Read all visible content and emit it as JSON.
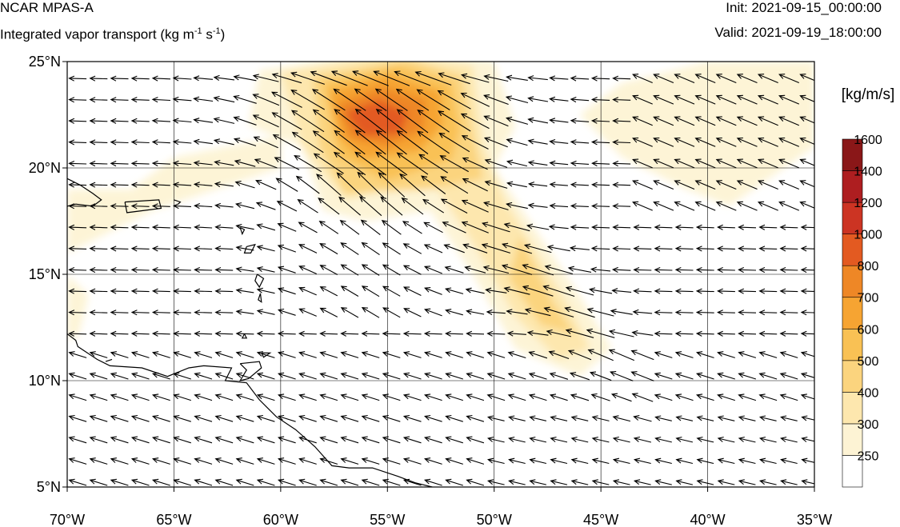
{
  "header": {
    "model_name": "NCAR MPAS-A",
    "field_name": "Integrated vapor transport (kg m",
    "field_unit_exp1": "-1",
    "field_mid": " s",
    "field_unit_exp2": "-1",
    "field_close": ")",
    "init_label": "Init: 2021-09-15_00:00:00",
    "valid_label": "Valid: 2021-09-19_18:00:00"
  },
  "map": {
    "lon_range": [
      -70,
      -35
    ],
    "lat_range": [
      5,
      25
    ],
    "lon_ticks": [
      {
        "value": -70,
        "label": "70°W"
      },
      {
        "value": -65,
        "label": "65°W"
      },
      {
        "value": -60,
        "label": "60°W"
      },
      {
        "value": -55,
        "label": "55°W"
      },
      {
        "value": -50,
        "label": "50°W"
      },
      {
        "value": -45,
        "label": "45°W"
      },
      {
        "value": -40,
        "label": "40°W"
      },
      {
        "value": -35,
        "label": "35°W"
      }
    ],
    "lat_ticks": [
      {
        "value": 5,
        "label": "5°N"
      },
      {
        "value": 10,
        "label": "10°N"
      },
      {
        "value": 15,
        "label": "15°N"
      },
      {
        "value": 20,
        "label": "20°N"
      },
      {
        "value": 25,
        "label": "25°N"
      }
    ],
    "gridlines": true
  },
  "colorbar": {
    "unit_label": "[kg/m/s]",
    "levels": [
      250,
      300,
      400,
      500,
      600,
      700,
      800,
      1000,
      1200,
      1400,
      1600
    ],
    "colors": [
      "#ffffff",
      "#fdf3d4",
      "#fde7ae",
      "#fbd47e",
      "#f9c154",
      "#f6a432",
      "#ee8726",
      "#e35a21",
      "#cc3423",
      "#ae1e20",
      "#8a1718"
    ]
  },
  "colors": {
    "coast": "#000000",
    "grid": "#000000",
    "vector": "#000000"
  }
}
